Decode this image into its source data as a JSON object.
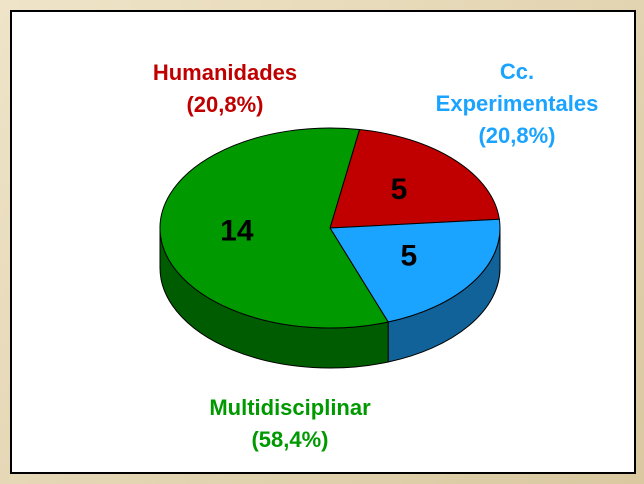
{
  "chart_data": {
    "type": "pie",
    "categories": [
      "Humanidades",
      "Cc. Experimentales",
      "Multidisciplinar"
    ],
    "values": [
      5,
      5,
      14
    ],
    "percent_labels": [
      "(20,8%)",
      "(20,8%)",
      "(58,4%)"
    ],
    "colors": [
      "#c00000",
      "#1aa3ff",
      "#009900"
    ]
  }
}
